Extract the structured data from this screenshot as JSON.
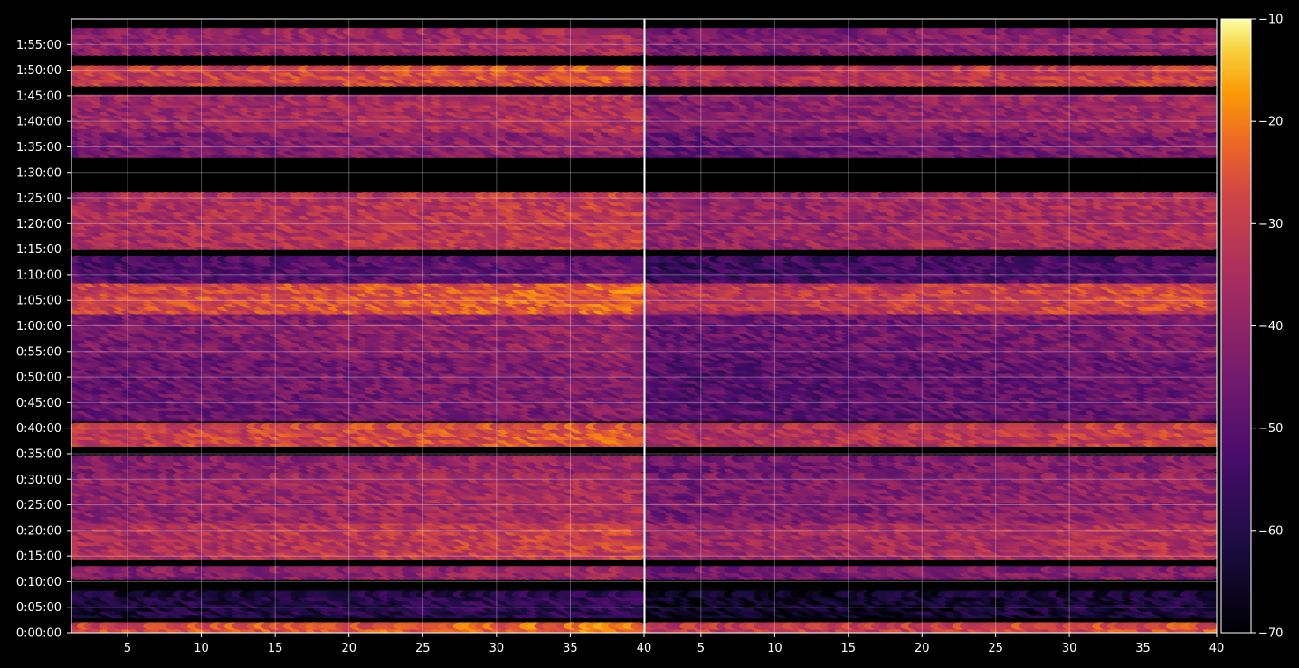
{
  "chart_data": {
    "type": "heatmap",
    "title": "",
    "xlabel": "",
    "ylabel": "",
    "panels": [
      {
        "name": "",
        "xlim": [
          1.2,
          40
        ],
        "x_ticks": [
          5,
          10,
          15,
          20,
          25,
          30,
          35,
          40
        ]
      },
      {
        "name": "",
        "xlim": [
          1.2,
          40
        ],
        "x_ticks": [
          5,
          10,
          15,
          20,
          25,
          30,
          35,
          40
        ]
      }
    ],
    "y_range_seconds": [
      0,
      7200
    ],
    "y_tick_labels": [
      "0:00:00",
      "0:05:00",
      "0:10:00",
      "0:15:00",
      "0:20:00",
      "0:25:00",
      "0:30:00",
      "0:35:00",
      "0:40:00",
      "0:45:00",
      "0:50:00",
      "0:55:00",
      "1:00:00",
      "1:05:00",
      "1:10:00",
      "1:15:00",
      "1:20:00",
      "1:25:00",
      "1:30:00",
      "1:35:00",
      "1:40:00",
      "1:45:00",
      "1:50:00",
      "1:55:00"
    ],
    "grid": true,
    "colormap": "inferno",
    "colorbar": {
      "range": [
        -70,
        -10
      ],
      "tick_labels": [
        "−70",
        "−60",
        "−50",
        "−40",
        "−30",
        "−20",
        "−10"
      ],
      "tick_values": [
        -70,
        -60,
        -50,
        -40,
        -30,
        -20,
        -10
      ]
    },
    "bands": [
      {
        "t_start": "0:00:00",
        "t_end": "0:01:30",
        "level_dB": -25
      },
      {
        "t_start": "0:03:30",
        "t_end": "0:08:00",
        "level_dB": -60
      },
      {
        "t_start": "0:11:00",
        "t_end": "0:12:30",
        "level_dB": -40
      },
      {
        "t_start": "0:15:00",
        "t_end": "0:22:00",
        "level_dB": -32
      },
      {
        "t_start": "0:22:00",
        "t_end": "0:31:00",
        "level_dB": -38
      },
      {
        "t_start": "0:32:00",
        "t_end": "0:34:00",
        "level_dB": -40
      },
      {
        "t_start": "0:37:00",
        "t_end": "0:40:30",
        "level_dB": -28
      },
      {
        "t_start": "0:42:00",
        "t_end": "0:54:00",
        "level_dB": -45
      },
      {
        "t_start": "0:54:30",
        "t_end": "1:03:00",
        "level_dB": -42
      },
      {
        "t_start": "1:03:00",
        "t_end": "1:08:30",
        "level_dB": -26
      },
      {
        "t_start": "1:09:00",
        "t_end": "1:13:00",
        "level_dB": -50
      },
      {
        "t_start": "1:15:30",
        "t_end": "1:26:00",
        "level_dB": -33
      },
      {
        "t_start": "1:33:30",
        "t_end": "1:38:00",
        "level_dB": -42
      },
      {
        "t_start": "1:38:30",
        "t_end": "1:45:00",
        "level_dB": -36
      },
      {
        "t_start": "1:47:30",
        "t_end": "1:50:30",
        "level_dB": -28
      },
      {
        "t_start": "1:53:30",
        "t_end": "1:57:30",
        "level_dB": -38
      }
    ]
  }
}
